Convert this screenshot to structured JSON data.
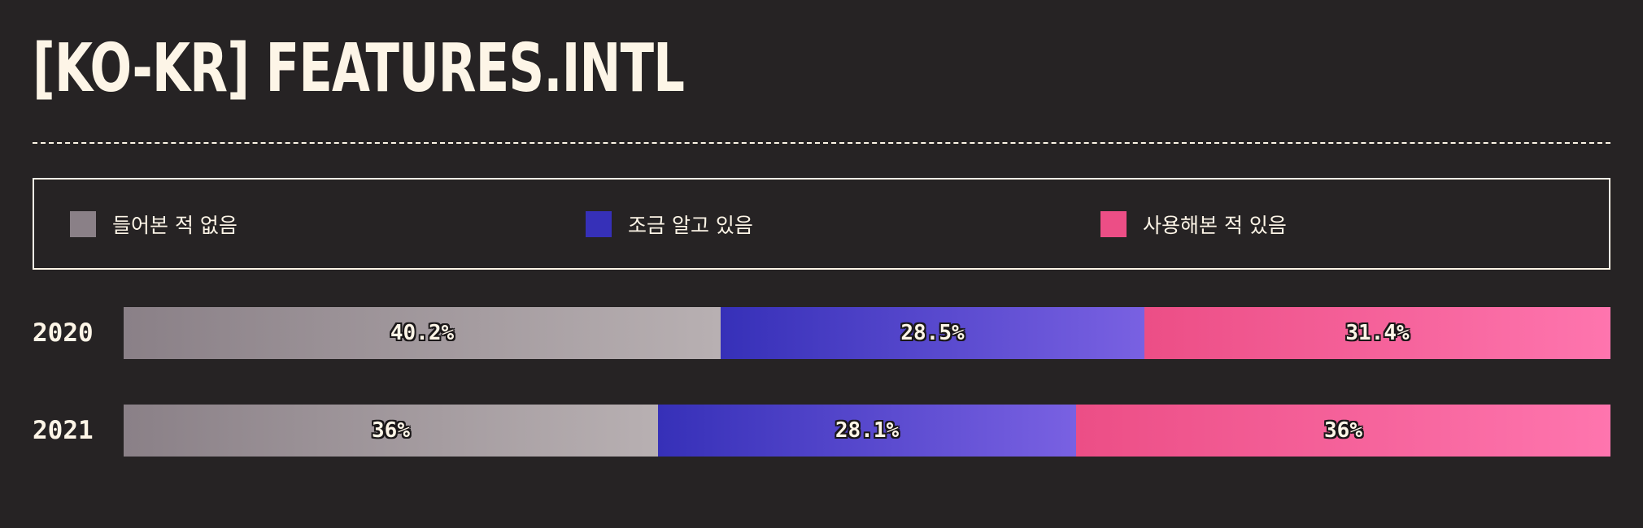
{
  "title": "[KO-KR] FEATURES.INTL",
  "colors": {
    "background": "#262324",
    "text": "#fdf5e7",
    "never_heard": [
      "#8a8087",
      "#b8b0b2"
    ],
    "know_a_little": [
      "#3630b8",
      "#7961e2"
    ],
    "used": [
      "#ec4e86",
      "#fe75ae"
    ]
  },
  "chart_data": {
    "type": "bar",
    "orientation": "horizontal",
    "stacked": true,
    "percent": true,
    "categories": [
      "2020",
      "2021"
    ],
    "series": [
      {
        "name": "들어본 적 없음",
        "values": [
          40.2,
          36
        ],
        "labels": [
          "40.2%",
          "36%"
        ]
      },
      {
        "name": "조금 알고 있음",
        "values": [
          28.5,
          28.1
        ],
        "labels": [
          "28.5%",
          "28.1%"
        ]
      },
      {
        "name": "사용해본 적 있음",
        "values": [
          31.4,
          36
        ],
        "labels": [
          "31.4%",
          "36%"
        ]
      }
    ],
    "legend_position": "top",
    "grid": false
  }
}
